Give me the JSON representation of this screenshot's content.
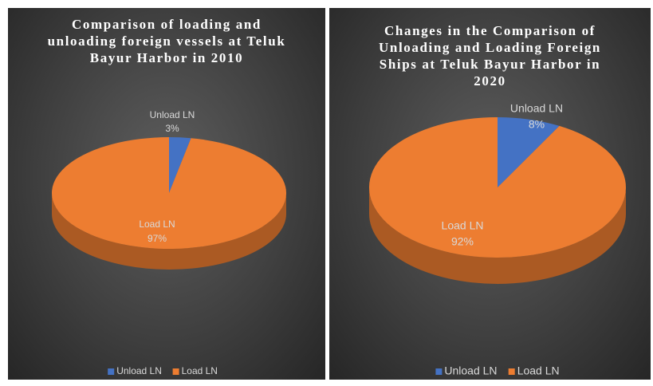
{
  "chart_data": [
    {
      "type": "pie",
      "title": "Comparison of loading and unloading foreign vessels at Teluk Bayur Harbor in 2010",
      "categories": [
        "Unload LN",
        "Load LN"
      ],
      "values": [
        3,
        97
      ],
      "value_labels": [
        "3%",
        "97%"
      ],
      "colors": [
        "#4472c4",
        "#ed7d31"
      ],
      "legend": "bottom"
    },
    {
      "type": "pie",
      "title": "Changes in the Comparison of Unloading and Loading Foreign Ships at Teluk Bayur Harbor in 2020",
      "categories": [
        "Unload LN",
        "Load LN"
      ],
      "values": [
        8,
        92
      ],
      "value_labels": [
        "8%",
        "92%"
      ],
      "colors": [
        "#4472c4",
        "#ed7d31"
      ],
      "legend": "bottom"
    }
  ]
}
